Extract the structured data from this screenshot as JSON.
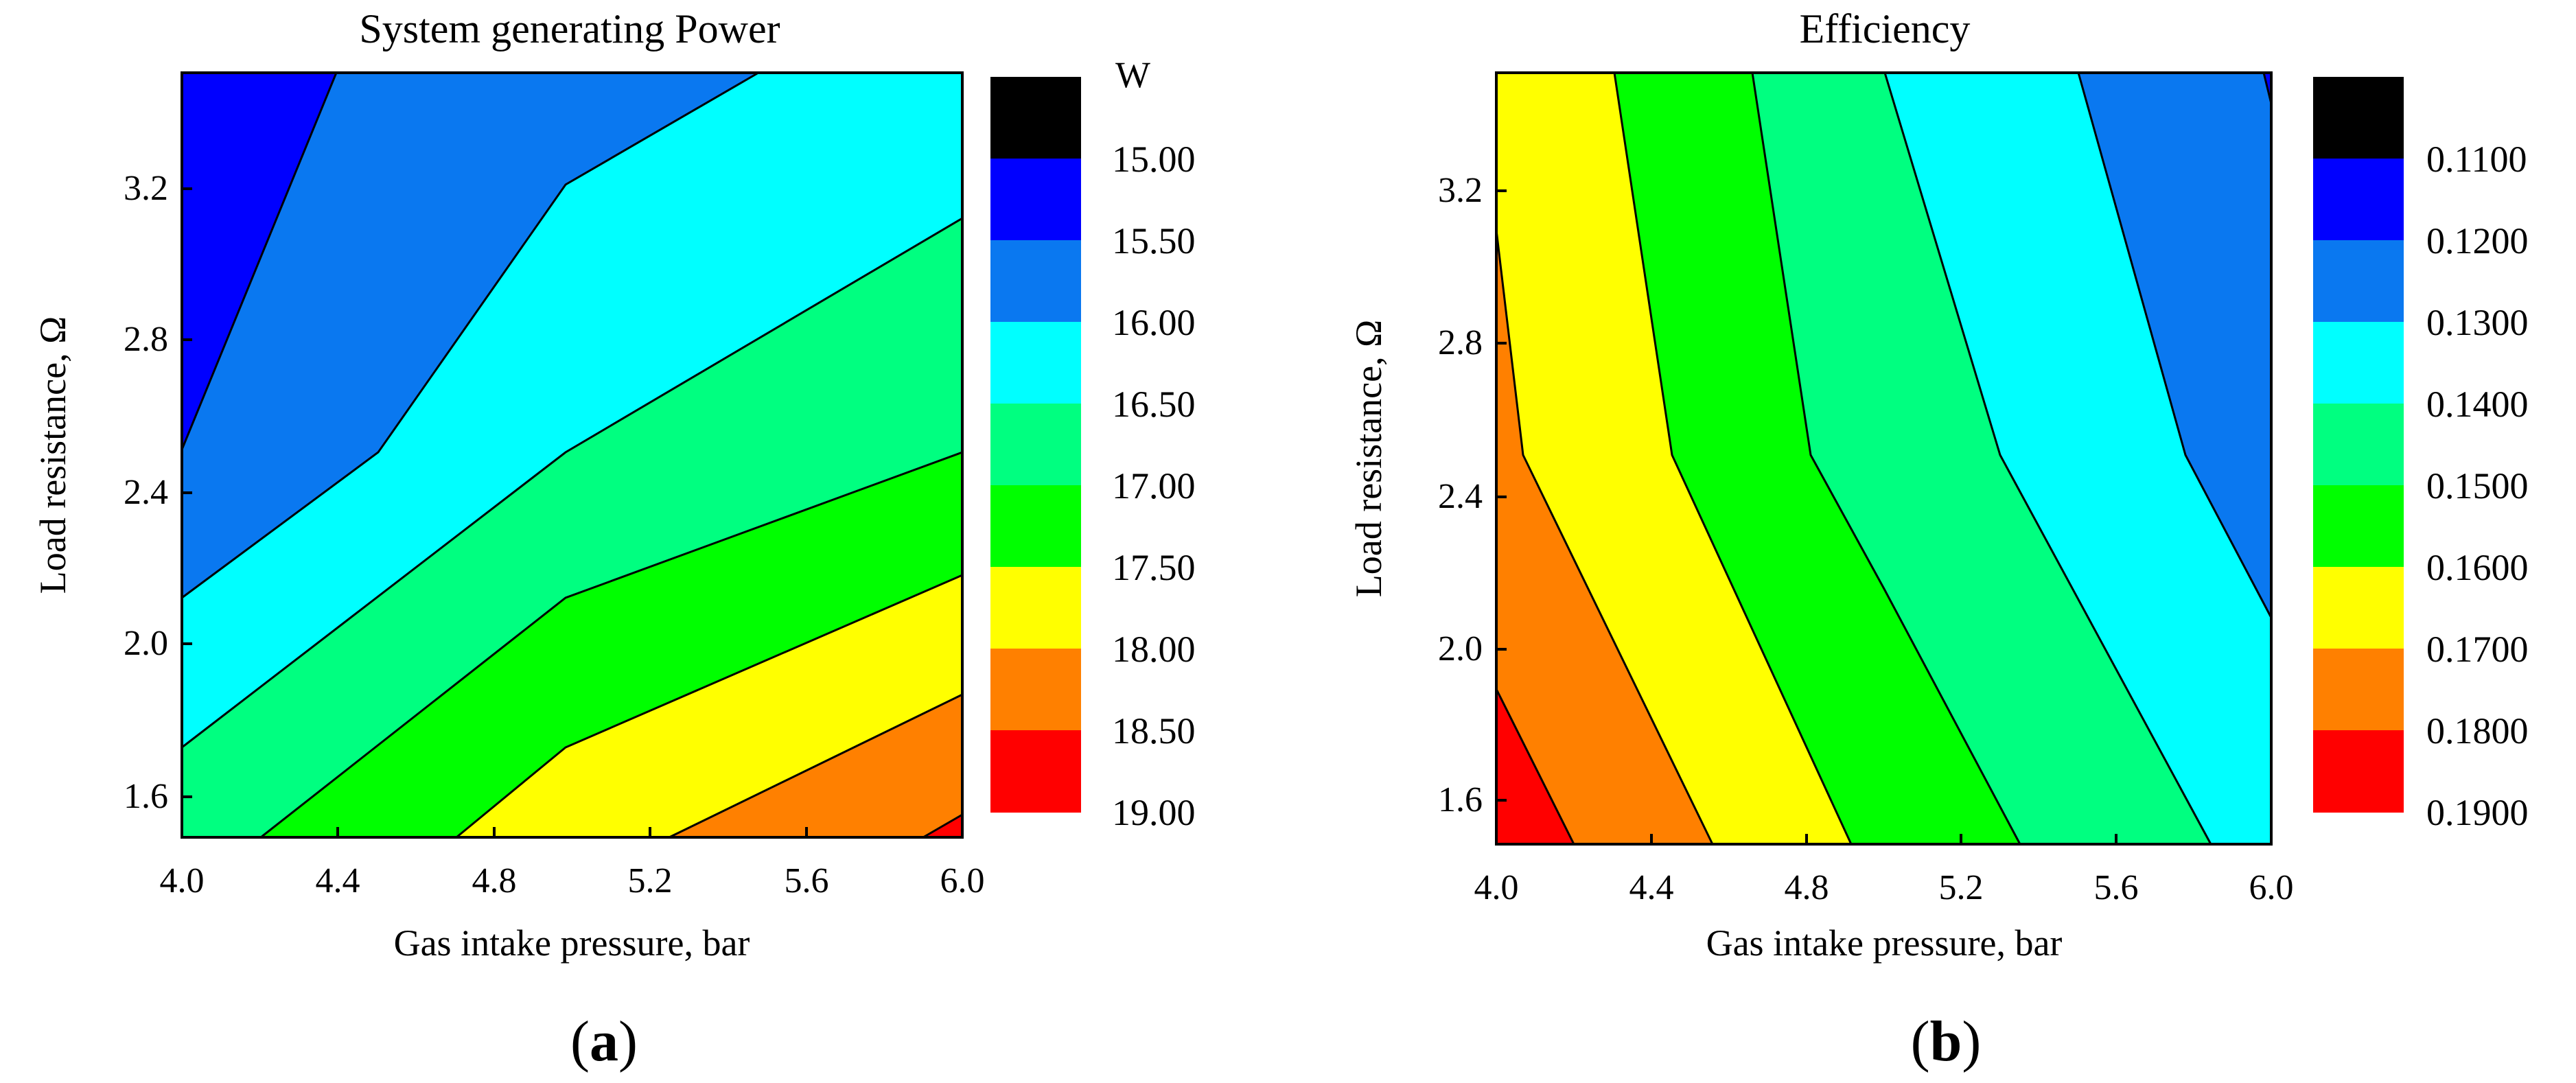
{
  "chart_data": [
    {
      "type": "contour",
      "title": "System generating Power",
      "xlabel": "Gas intake pressure, bar",
      "ylabel": "Load resistance, Ω",
      "xlim": [
        4.0,
        6.0
      ],
      "ylim": [
        1.5,
        3.5
      ],
      "xticks": [
        "4.0",
        "4.4",
        "4.8",
        "5.2",
        "5.6",
        "6.0"
      ],
      "yticks": [
        "1.6",
        "2.0",
        "2.4",
        "2.8",
        "3.2"
      ],
      "colorbar_unit": "W",
      "colorbar_levels": [
        "15.00",
        "15.50",
        "16.00",
        "16.50",
        "17.00",
        "17.50",
        "18.00",
        "18.50",
        "19.00"
      ],
      "colorbar_colors": [
        "#000000",
        "#0000ff",
        "#0a78f0",
        "#00ffff",
        "#00ff80",
        "#00ff00",
        "#ffff00",
        "#ff8000",
        "#ff0000"
      ],
      "contours": [
        {
          "level": "15.50",
          "points": [
            [
              4.0,
              2.52
            ],
            [
              4.4,
              3.5
            ]
          ]
        },
        {
          "level": "16.00",
          "points": [
            [
              4.0,
              2.12
            ],
            [
              4.5,
              2.5
            ],
            [
              5.0,
              3.22
            ],
            [
              5.5,
              3.5
            ]
          ]
        },
        {
          "level": "16.50",
          "points": [
            [
              4.0,
              1.73
            ],
            [
              5.0,
              2.5
            ],
            [
              6.0,
              3.12
            ]
          ]
        },
        {
          "level": "17.00",
          "points": [
            [
              4.2,
              1.5
            ],
            [
              5.0,
              2.12
            ],
            [
              6.0,
              2.5
            ]
          ]
        },
        {
          "level": "17.50",
          "points": [
            [
              4.7,
              1.5
            ],
            [
              5.0,
              1.73
            ],
            [
              6.0,
              2.18
            ]
          ]
        },
        {
          "level": "18.00",
          "points": [
            [
              5.25,
              1.5
            ],
            [
              6.0,
              1.87
            ]
          ]
        },
        {
          "level": "18.50",
          "points": [
            [
              5.9,
              1.5
            ],
            [
              6.0,
              1.56
            ]
          ]
        }
      ]
    },
    {
      "type": "contour",
      "title": "Efficiency",
      "xlabel": "Gas intake pressure, bar",
      "ylabel": "Load resistance, Ω",
      "xlim": [
        4.0,
        6.0
      ],
      "ylim": [
        1.5,
        3.5
      ],
      "xticks": [
        "4.0",
        "4.4",
        "4.8",
        "5.2",
        "5.6",
        "6.0"
      ],
      "yticks": [
        "1.6",
        "2.0",
        "2.4",
        "2.8",
        "3.2"
      ],
      "colorbar_levels": [
        "0.1100",
        "0.1200",
        "0.1300",
        "0.1400",
        "0.1500",
        "0.1600",
        "0.1700",
        "0.1800",
        "0.1900"
      ],
      "colorbar_colors": [
        "#000000",
        "#0000ff",
        "#0a78f0",
        "#00ffff",
        "#00ff80",
        "#00ff00",
        "#ffff00",
        "#ff8000",
        "#ff0000"
      ],
      "contours": [
        {
          "level": "0.1800",
          "points": [
            [
              4.0,
              1.9
            ],
            [
              4.2,
              1.5
            ]
          ]
        },
        {
          "level": "0.1700",
          "points": [
            [
              4.0,
              3.12
            ],
            [
              4.07,
              2.5
            ],
            [
              4.55,
              1.5
            ]
          ]
        },
        {
          "level": "0.1600",
          "points": [
            [
              4.3,
              3.5
            ],
            [
              4.45,
              2.5
            ],
            [
              4.9,
              1.5
            ]
          ]
        },
        {
          "level": "0.1500",
          "points": [
            [
              4.65,
              3.5
            ],
            [
              4.8,
              2.5
            ],
            [
              5.0,
              2.15
            ],
            [
              5.35,
              1.5
            ]
          ]
        },
        {
          "level": "0.1400",
          "points": [
            [
              5.0,
              3.5
            ],
            [
              5.3,
              2.5
            ],
            [
              5.85,
              1.5
            ]
          ]
        },
        {
          "level": "0.1300",
          "points": [
            [
              5.5,
              3.5
            ],
            [
              5.78,
              2.5
            ],
            [
              6.0,
              2.08
            ]
          ]
        },
        {
          "level": "0.1200",
          "points": [
            [
              5.98,
              3.5
            ],
            [
              6.0,
              3.42
            ]
          ]
        }
      ]
    }
  ],
  "panels": {
    "a_label": "a",
    "b_label": "b",
    "paren_open": "(",
    "paren_close": ")"
  }
}
